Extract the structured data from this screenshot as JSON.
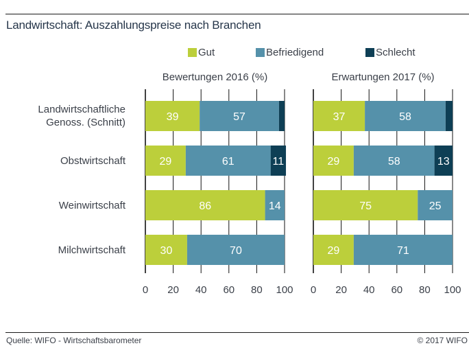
{
  "title": "Landwirtschaft: Auszahlungspreise nach Branchen",
  "footer": {
    "source": "Quelle: WIFO - Wirtschaftsbarometer",
    "copyright": "© 2017 WIFO"
  },
  "chart_data": {
    "type": "bar",
    "orientation": "horizontal",
    "stacked": true,
    "title": "Landwirtschaft: Auszahlungspreise nach Branchen",
    "categories": [
      [
        "Landwirtschaftliche",
        "Genoss. (Schnitt)"
      ],
      [
        "Obstwirtschaft"
      ],
      [
        "Weinwirtschaft"
      ],
      [
        "Milchwirtschaft"
      ]
    ],
    "legend": {
      "position": "top",
      "entries": [
        {
          "name": "Gut",
          "color": "#bccf3b"
        },
        {
          "name": "Befriedigend",
          "color": "#5591aa"
        },
        {
          "name": "Schlecht",
          "color": "#0e3f55"
        }
      ]
    },
    "xlim": [
      0,
      100
    ],
    "xticks": [
      0,
      20,
      40,
      60,
      80,
      100
    ],
    "grid": "vertical",
    "panels": [
      {
        "title": "Bewertungen 2016 (%)",
        "series": [
          {
            "name": "Gut",
            "values": [
              39,
              29,
              86,
              30
            ]
          },
          {
            "name": "Befriedigend",
            "values": [
              57,
              61,
              14,
              70
            ]
          },
          {
            "name": "Schlecht",
            "values": [
              4,
              11,
              0,
              0
            ]
          }
        ],
        "labels": [
          [
            "39",
            "57",
            ""
          ],
          [
            "29",
            "61",
            "11"
          ],
          [
            "86",
            "14",
            ""
          ],
          [
            "30",
            "70",
            ""
          ]
        ]
      },
      {
        "title": "Erwartungen 2017 (%)",
        "series": [
          {
            "name": "Gut",
            "values": [
              37,
              29,
              75,
              29
            ]
          },
          {
            "name": "Befriedigend",
            "values": [
              58,
              58,
              25,
              71
            ]
          },
          {
            "name": "Schlecht",
            "values": [
              5,
              13,
              0,
              0
            ]
          }
        ],
        "labels": [
          [
            "37",
            "58",
            ""
          ],
          [
            "29",
            "58",
            "13"
          ],
          [
            "75",
            "25",
            ""
          ],
          [
            "29",
            "71",
            ""
          ]
        ]
      }
    ]
  }
}
